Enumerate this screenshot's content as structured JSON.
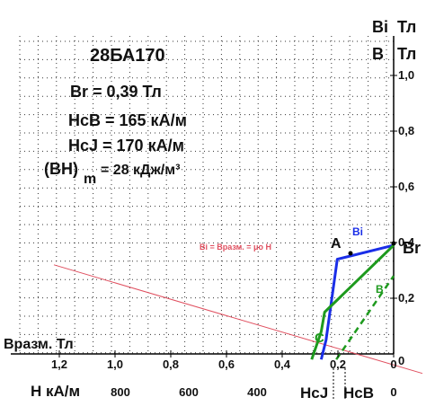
{
  "chart_data": {
    "type": "line",
    "title": "28БА170",
    "params": {
      "br": "Br = 0,39 Тл",
      "hcb": "HcB = 165 кА/м",
      "hcj": "HcJ = 170 кА/м",
      "bhmax_prefix": "(BH)",
      "bhmax_sub": "m",
      "bhmax_value": "= 28  кДж/м³"
    },
    "right_axis": {
      "label_bi": "Bi",
      "label_b": "B",
      "unit": "Тл",
      "ticks": [
        "1,0",
        "0,8",
        "0,6",
        "0,4",
        "0,2"
      ],
      "tick_values": [
        1.0,
        0.8,
        0.6,
        0.4,
        0.2
      ],
      "zero_label": "0",
      "range": [
        0,
        1.1
      ]
    },
    "x_axis_tesla": {
      "label": "Bразм. Тл",
      "ticks": [
        "1,2",
        "1,0",
        "0,8",
        "0,6",
        "0,4",
        "0,2",
        "0"
      ],
      "tick_values": [
        1.2,
        1.0,
        0.8,
        0.6,
        0.4,
        0.2,
        0
      ]
    },
    "x_axis_h": {
      "label": "H  кА/м",
      "ticks": [
        "800",
        "600",
        "400",
        "0"
      ],
      "tick_values": [
        800,
        600,
        400,
        0
      ],
      "hcj_label": "HcJ",
      "hcb_label": "HcB"
    },
    "series": [
      {
        "name": "Bi",
        "color": "#1a2ee8",
        "style": "solid",
        "x": [
          0,
          165,
          198,
          212
        ],
        "y": [
          0.39,
          0.34,
          0.05,
          -0.02
        ]
      },
      {
        "name": "B",
        "color": "#1e9a1e",
        "style": "solid",
        "x": [
          0,
          202,
          212,
          240
        ],
        "y": [
          0.39,
          0.15,
          0.08,
          -0.02
        ]
      }
    ],
    "dashed_line": {
      "color": "#1e9a1e",
      "x": [
        168,
        0
      ],
      "y": [
        -0.02,
        0.28
      ]
    },
    "load_line": {
      "label": "Bi = Bразм. =  μo H",
      "color": "#e05060",
      "x": [
        60,
        470
      ],
      "y": [
        0.32,
        -0.07
      ]
    },
    "annotations": {
      "A": "A",
      "Bi_curve": "Bi",
      "B_curve": "B",
      "C": "C",
      "Br": "Br"
    },
    "grid": true
  }
}
